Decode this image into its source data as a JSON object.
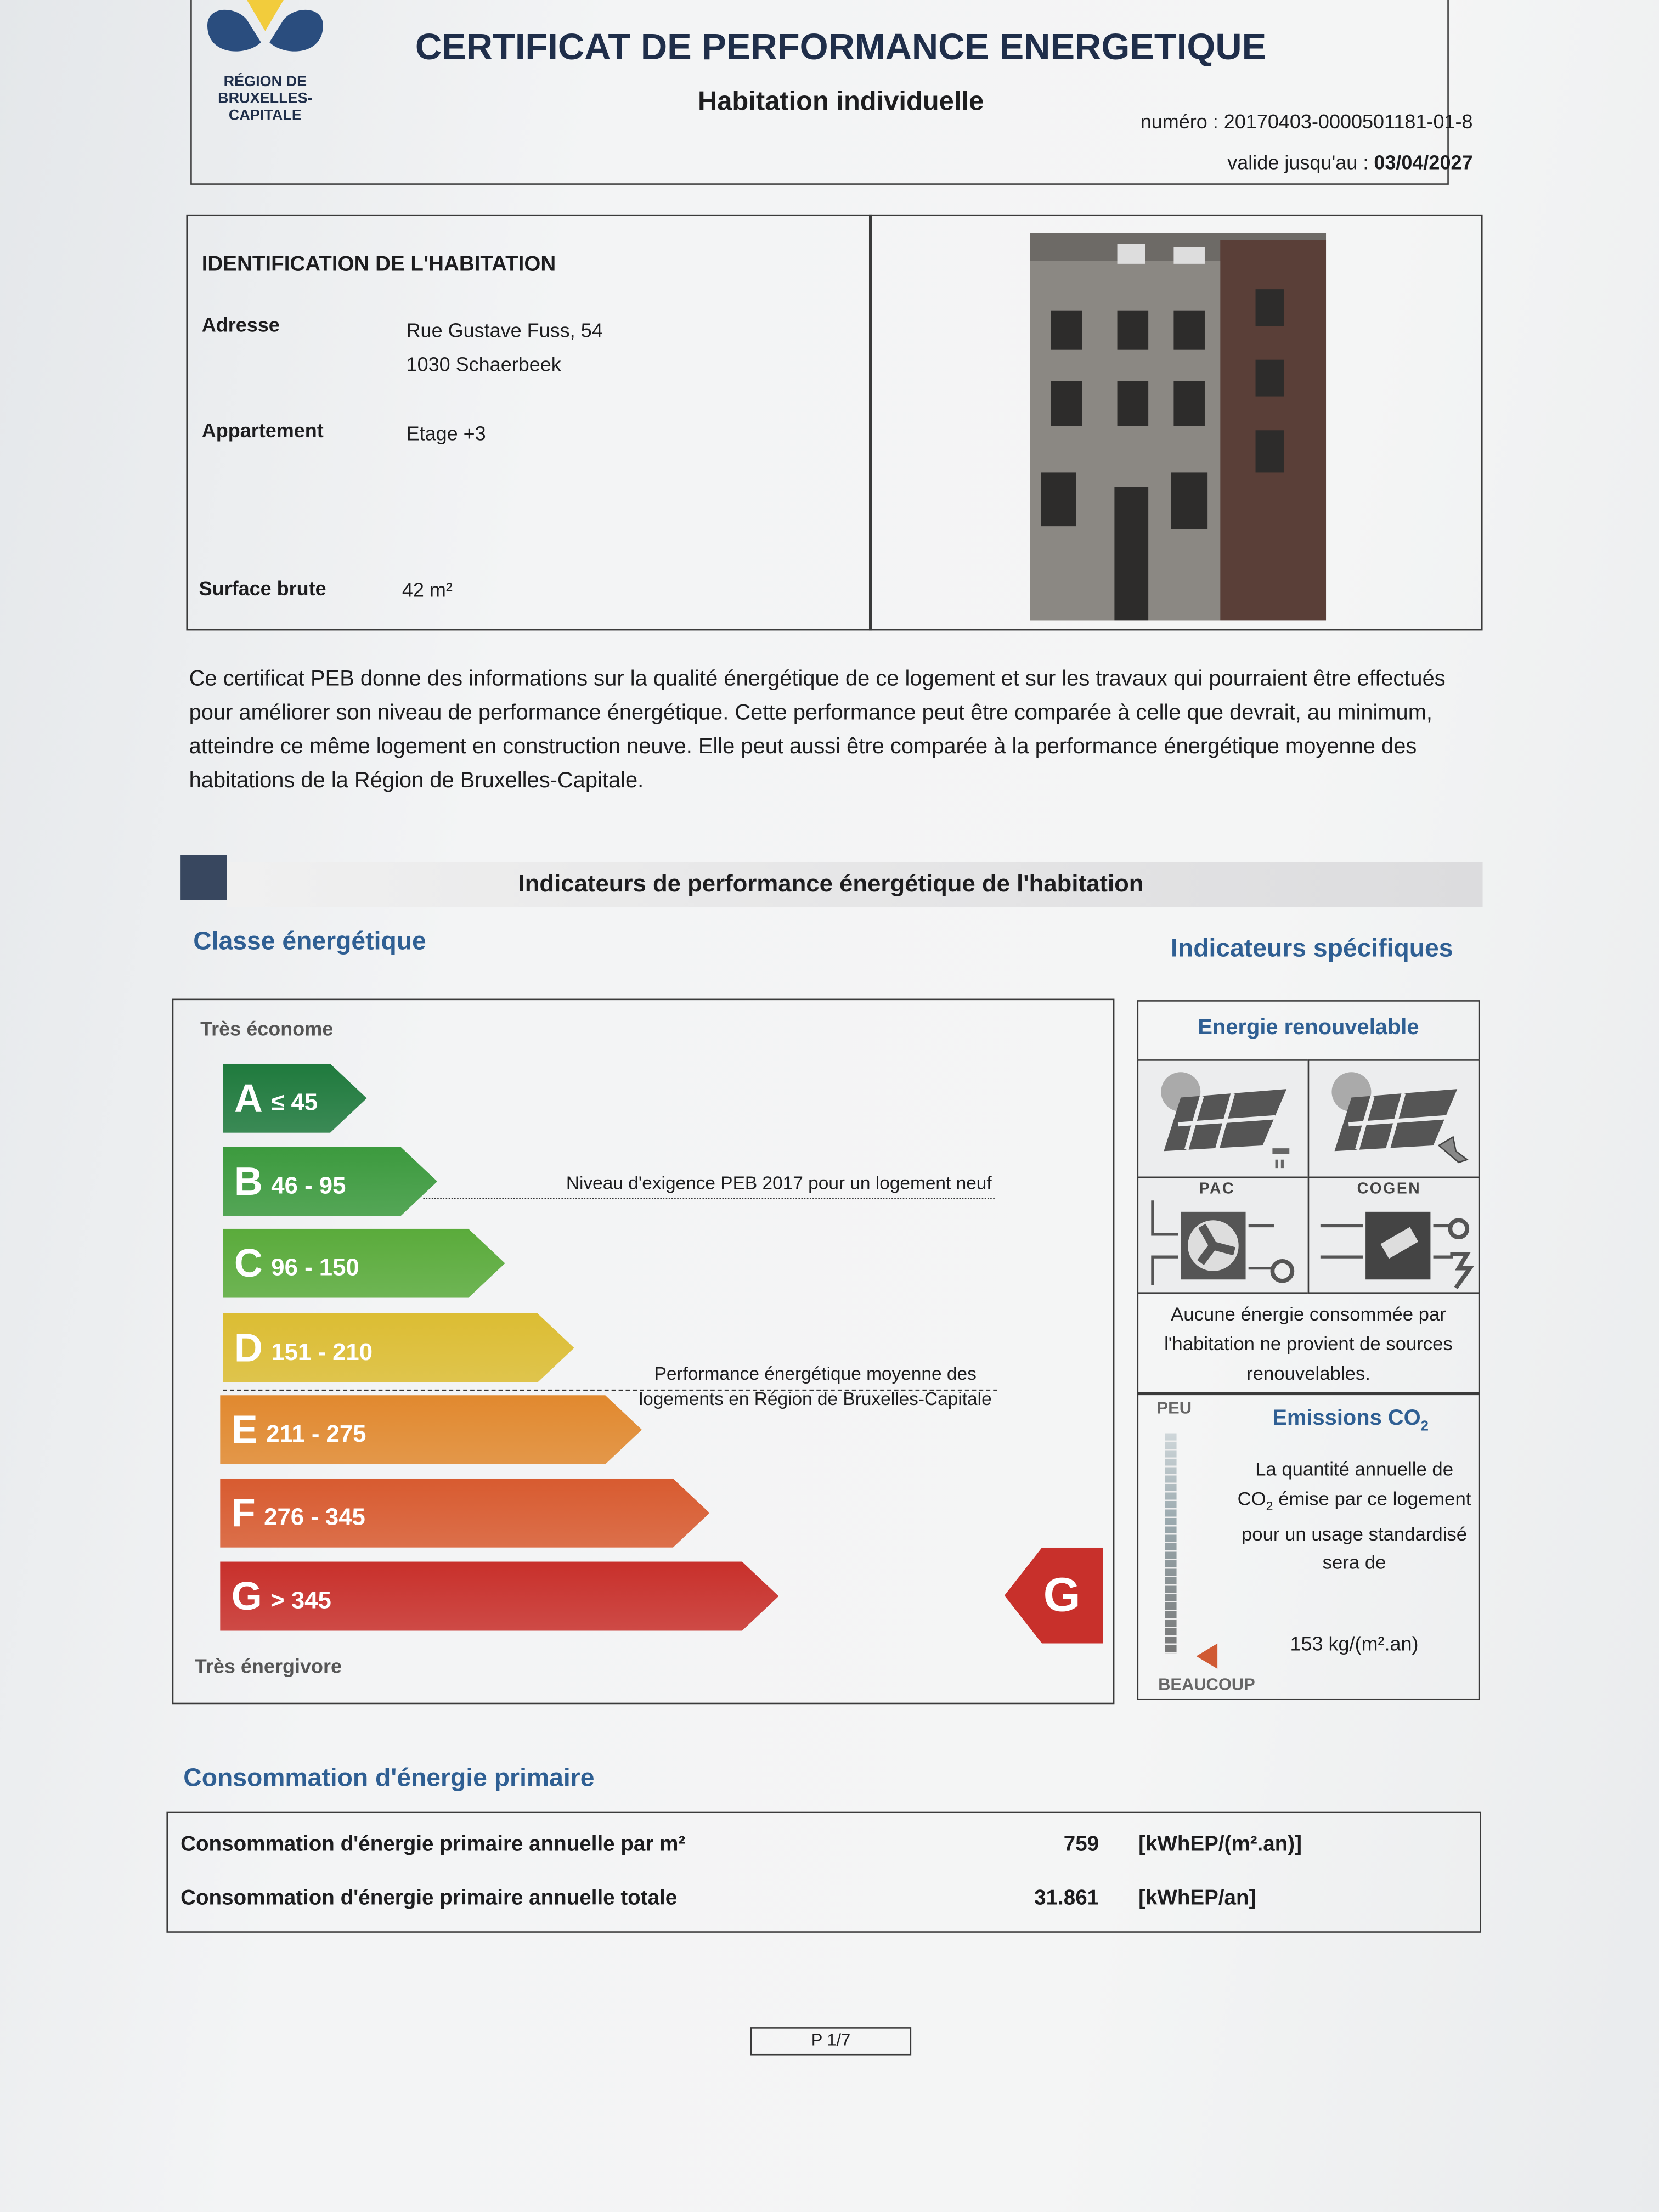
{
  "header": {
    "logo_text": [
      "RÉGION DE",
      "BRUXELLES-",
      "CAPITALE"
    ],
    "title": "CERTIFICAT DE PERFORMANCE ENERGETIQUE",
    "subtitle": "Habitation individuelle",
    "numero_label": "numéro :",
    "numero": "20170403-0000501181-01-8",
    "valid_label": "valide jusqu'au :",
    "valid_date": "03/04/2027"
  },
  "identification": {
    "title": "IDENTIFICATION DE L'HABITATION",
    "address_label": "Adresse",
    "address_line1": "Rue Gustave Fuss, 54",
    "address_line2": "1030 Schaerbeek",
    "apartment_label": "Appartement",
    "apartment_value": "Etage +3",
    "surface_label": "Surface brute",
    "surface_value": "42 m²"
  },
  "intro": "Ce certificat PEB donne des informations sur la qualité énergétique de ce logement et sur les travaux qui pourraient être effectués pour améliorer son niveau de performance énergétique. Cette performance peut être comparée à celle que devrait, au minimum, atteindre ce même logement en construction neuve.  Elle peut aussi être comparée à la performance énergétique moyenne des habitations de la Région de Bruxelles-Capitale.",
  "section_title": "Indicateurs de performance énergétique de l'habitation",
  "classe": {
    "heading": "Classe énergétique",
    "top_label": "Très économe",
    "bottom_label": "Très énergivore",
    "classes": [
      {
        "letter": "A",
        "range": "≤ 45",
        "color": "#1f7a3d"
      },
      {
        "letter": "B",
        "range": "46 - 95",
        "color": "#3c9a3e"
      },
      {
        "letter": "C",
        "range": "96 - 150",
        "color": "#5aab3b"
      },
      {
        "letter": "D",
        "range": "151 - 210",
        "color": "#dcbd33"
      },
      {
        "letter": "E",
        "range": "211 - 275",
        "color": "#e1892f"
      },
      {
        "letter": "F",
        "range": "276 - 345",
        "color": "#d85b30"
      },
      {
        "letter": "G",
        "range": "> 345",
        "color": "#c8302b"
      }
    ],
    "ref_new": "Niveau d'exigence PEB 2017 pour un logement neuf",
    "ref_avg_line1": "Performance énergétique moyenne des",
    "ref_avg_line2": "logements en Région de Bruxelles-Capitale",
    "current_class": "G",
    "current_color": "#c8302b"
  },
  "specific": {
    "heading": "Indicateurs spécifiques",
    "renewable_title": "Energie renouvelable",
    "pac_label": "PAC",
    "cogen_label": "COGEN",
    "renewable_text": "Aucune énergie consommée par l'habitation ne provient de sources renouvelables.",
    "co2_title": "Emissions CO",
    "co2_sub": "2",
    "peu": "PEU",
    "beaucoup": "BEAUCOUP",
    "co2_text1": "La quantité annuelle de",
    "co2_text_co": "CO",
    "co2_text2": "émise par ce logement pour un usage standardisé sera de",
    "co2_value": "153 kg/(m².an)"
  },
  "consumption": {
    "heading": "Consommation d'énergie primaire",
    "rows": [
      {
        "label": "Consommation d'énergie primaire annuelle par m²",
        "value": "759",
        "unit": "[kWhEP/(m².an)]"
      },
      {
        "label": "Consommation d'énergie primaire annuelle totale",
        "value": "31.861",
        "unit": "[kWhEP/an]"
      }
    ]
  },
  "page": "P 1/7"
}
